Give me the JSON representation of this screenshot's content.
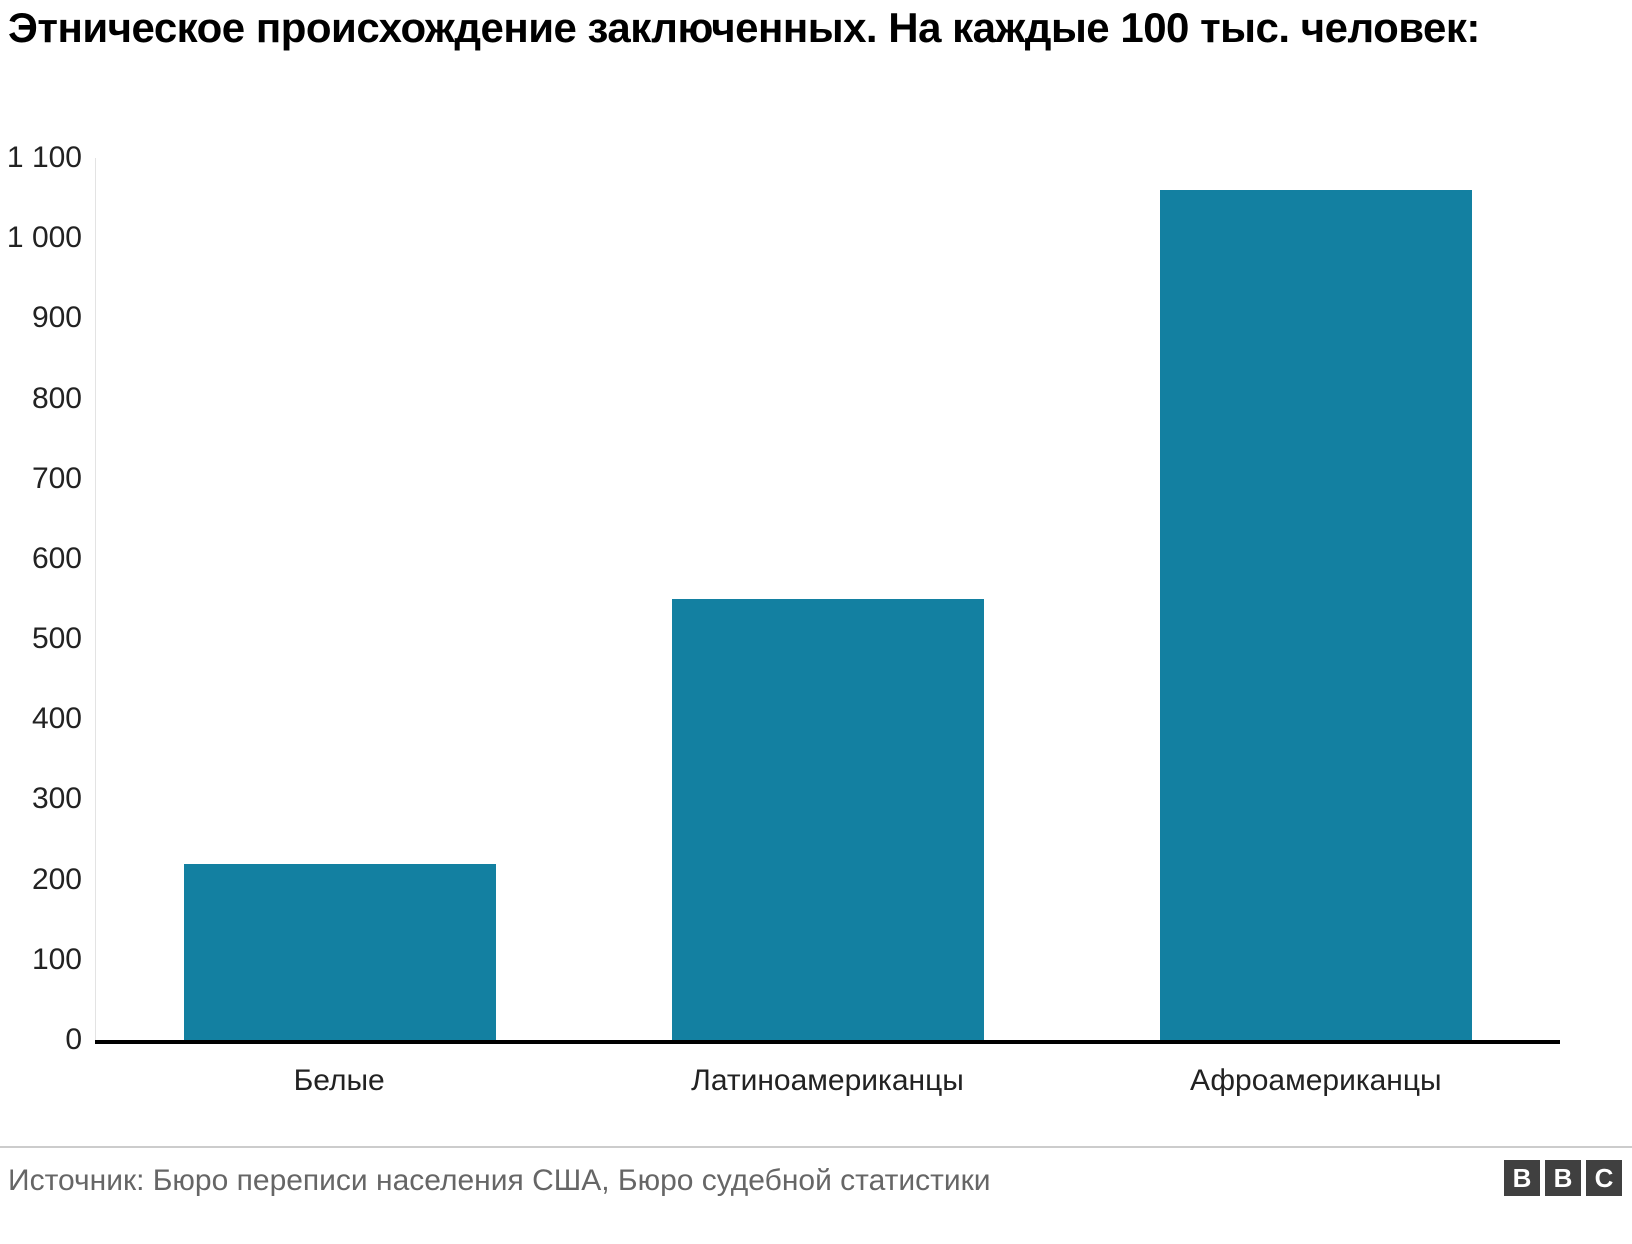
{
  "title": "Этническое происхождение заключенных. На каждые 100 тыс. человек:",
  "chart_data": {
    "type": "bar",
    "title": "Этническое происхождение заключенных. На каждые 100 тыс. человек:",
    "categories": [
      "Белые",
      "Латиноамериканцы",
      "Афроамериканцы"
    ],
    "values": [
      220,
      550,
      1060
    ],
    "xlabel": "",
    "ylabel": "",
    "ylim": [
      0,
      1100
    ],
    "ytick_step": 100,
    "ytick_labels": [
      "0",
      "100",
      "200",
      "300",
      "400",
      "500",
      "600",
      "700",
      "800",
      "900",
      "1 000",
      "1 100"
    ],
    "bar_color": "#1380A1",
    "grid": false,
    "legend": false
  },
  "footer": {
    "source": "Источник: Бюро переписи населения США, Бюро судебной статистики",
    "logo_letters": [
      "B",
      "B",
      "C"
    ]
  }
}
